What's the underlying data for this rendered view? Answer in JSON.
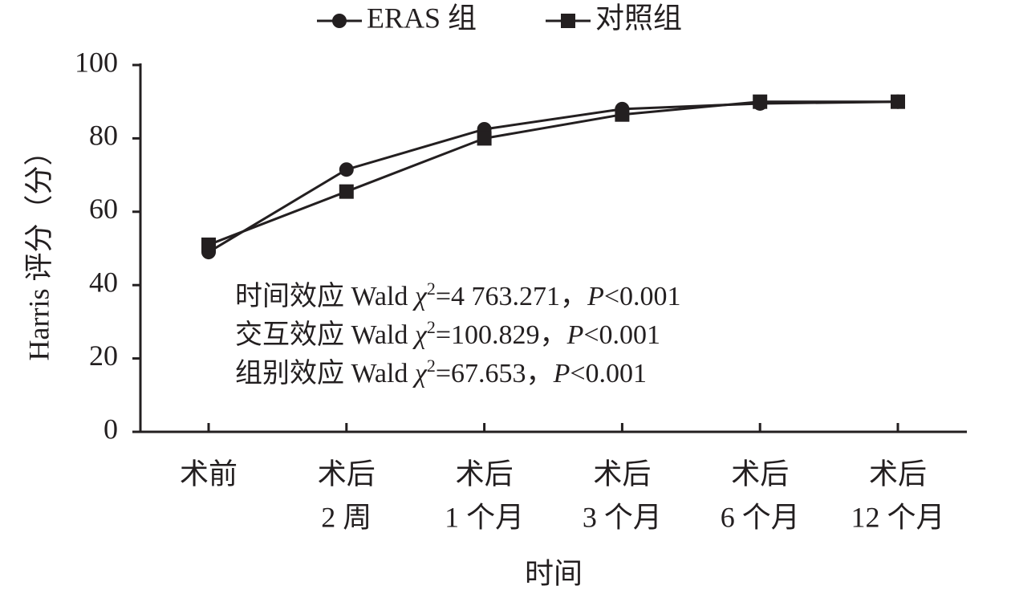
{
  "chart_data": {
    "type": "line",
    "y_label": "Harris 评分（分）",
    "x_label": "时间",
    "categories": [
      [
        "术前"
      ],
      [
        "术后",
        "2 周"
      ],
      [
        "术后",
        "1 个月"
      ],
      [
        "术后",
        "3 个月"
      ],
      [
        "术后",
        "6 个月"
      ],
      [
        "术后",
        "12 个月"
      ]
    ],
    "series": [
      {
        "name": "ERAS 组",
        "color": "#231f20",
        "marker": "circle",
        "values": [
          49,
          71.5,
          82.5,
          88,
          89.5,
          90
        ]
      },
      {
        "name": "对照组",
        "color": "#231f20",
        "marker": "square",
        "values": [
          51,
          65.5,
          80,
          86.5,
          90,
          90
        ]
      }
    ],
    "ylim": [
      0,
      100
    ],
    "yticks": [
      0,
      20,
      40,
      60,
      80,
      100
    ],
    "annotations": [
      [
        "时间效应 Wald ",
        "χ",
        "2",
        "=4 763.271，",
        "P",
        "<0.001"
      ],
      [
        "交互效应 Wald ",
        "χ",
        "2",
        "=100.829，",
        "P",
        "<0.001"
      ],
      [
        "组别效应 Wald ",
        "χ",
        "2",
        "=67.653，",
        "P",
        "<0.001"
      ]
    ]
  }
}
